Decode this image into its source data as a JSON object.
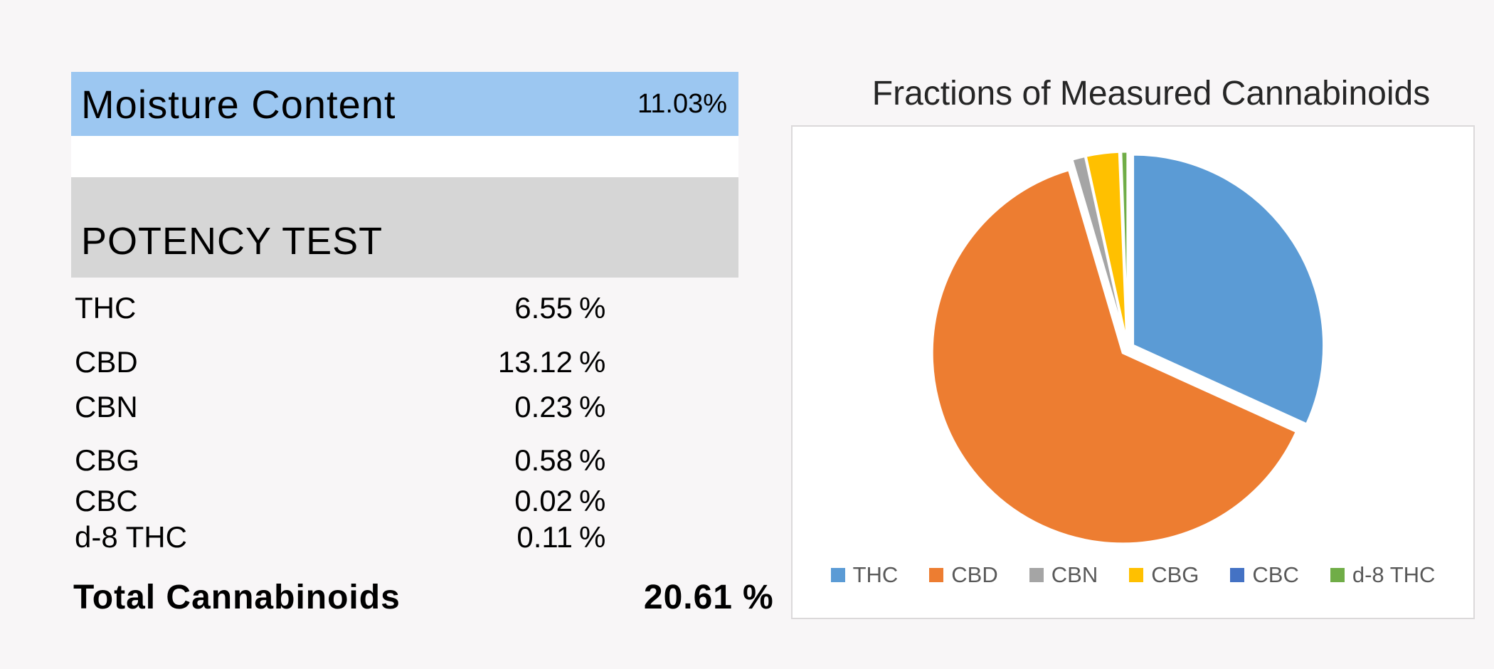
{
  "moisture": {
    "label": "Moisture Content",
    "value": "11.03%"
  },
  "potency": {
    "header": "POTENCY TEST",
    "rows": [
      {
        "name": "THC",
        "value": "6.55",
        "unit": "%"
      },
      {
        "name": "CBD",
        "value": "13.12",
        "unit": "%"
      },
      {
        "name": "CBN",
        "value": "0.23",
        "unit": "%"
      },
      {
        "name": "CBG",
        "value": "0.58",
        "unit": "%"
      },
      {
        "name": "CBC",
        "value": "0.02",
        "unit": "%"
      },
      {
        "name": "d-8 THC",
        "value": "0.11",
        "unit": "%"
      }
    ],
    "total": {
      "name": "Total Cannabinoids",
      "value": "20.61",
      "unit": "%"
    }
  },
  "chart_data": {
    "type": "pie",
    "title": "Fractions of Measured Cannabinoids",
    "categories": [
      "THC",
      "CBD",
      "CBN",
      "CBG",
      "CBC",
      "d-8 THC"
    ],
    "values": [
      6.55,
      13.12,
      0.23,
      0.58,
      0.02,
      0.11
    ],
    "units": "%",
    "colors": [
      "#5B9BD5",
      "#ED7D31",
      "#A5A5A5",
      "#FFC000",
      "#4472C4",
      "#70AD47"
    ],
    "legend_position": "bottom",
    "start_angle_deg": 0,
    "direction": "clockwise",
    "exploded": true
  },
  "colors": {
    "background": "#F8F6F7",
    "moisture_bar": "#9CC7F1",
    "section_bar": "#D6D6D6",
    "chart_border": "#DBD9DA",
    "legend_text": "#595959",
    "slice_gap": "#FFFFFF"
  }
}
